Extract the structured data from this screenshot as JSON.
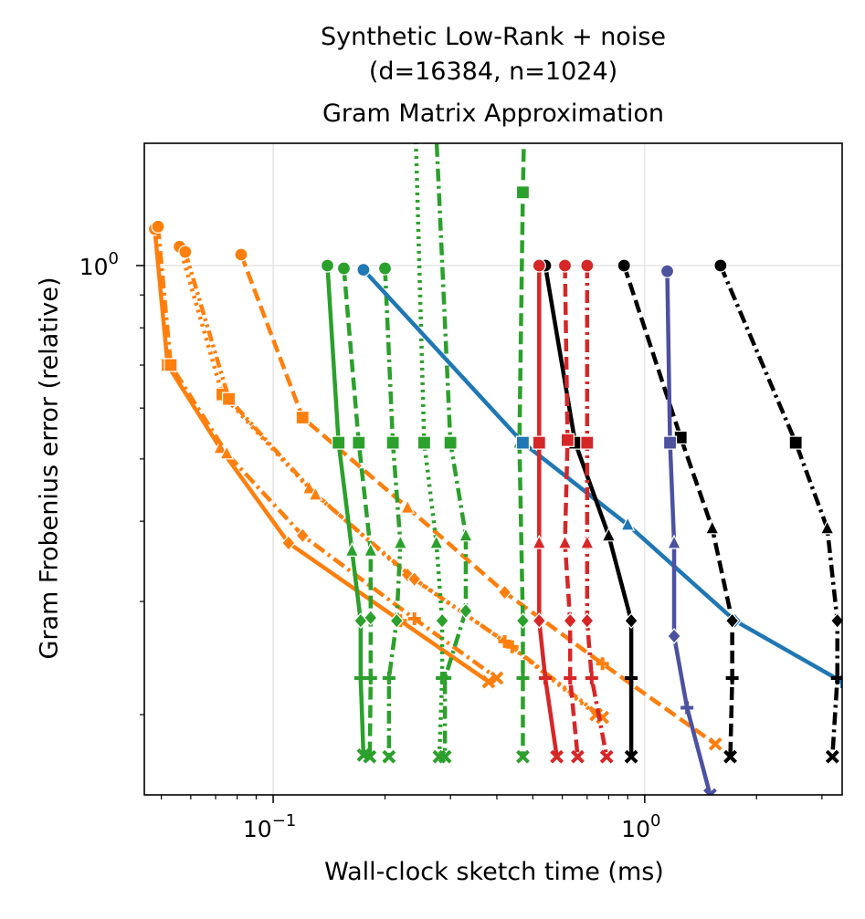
{
  "chart_data": {
    "type": "line",
    "title": [
      "Synthetic Low-Rank + noise",
      "(d=16384, n=1024)",
      "Gram Matrix Approximation"
    ],
    "xlabel": "Wall-clock sketch time (ms)",
    "ylabel": "Gram Frobenius error (relative)",
    "xscale": "log",
    "yscale": "log",
    "xlim": [
      0.045,
      3.4
    ],
    "ylim": [
      0.15,
      1.55
    ],
    "x_ticks": [
      {
        "value": 0.1,
        "label": "10",
        "exp": "−1"
      },
      {
        "value": 1,
        "label": "10",
        "exp": "0"
      }
    ],
    "y_ticks": [
      {
        "value": 1,
        "label": "10",
        "exp": "0"
      }
    ],
    "grid": true,
    "legend": "none",
    "marker_order": [
      "circle",
      "square",
      "triangle",
      "diamond",
      "plus",
      "x"
    ],
    "series": [
      {
        "color": "#ff7f0e",
        "dash": "solid",
        "x": [
          0.048,
          0.052,
          0.072,
          0.11,
          0.22,
          0.38
        ],
        "y": [
          1.14,
          0.7,
          0.52,
          0.37,
          0.28,
          0.225
        ]
      },
      {
        "color": "#ff7f0e",
        "dash": "dashdot",
        "x": [
          0.049,
          0.053,
          0.075,
          0.12,
          0.24,
          0.4
        ],
        "y": [
          1.15,
          0.7,
          0.51,
          0.38,
          0.282,
          0.228
        ]
      },
      {
        "color": "#ff7f0e",
        "dash": "dotted",
        "x": [
          0.056,
          0.073,
          0.125,
          0.23,
          0.42,
          0.74
        ],
        "y": [
          1.07,
          0.63,
          0.45,
          0.33,
          0.26,
          0.2
        ]
      },
      {
        "color": "#ff7f0e",
        "dash": "dashdotdot",
        "x": [
          0.058,
          0.076,
          0.13,
          0.24,
          0.44,
          0.77
        ],
        "y": [
          1.05,
          0.62,
          0.44,
          0.325,
          0.255,
          0.198
        ]
      },
      {
        "color": "#ff7f0e",
        "dash": "dashed",
        "x": [
          0.082,
          0.12,
          0.23,
          0.42,
          0.77,
          1.55
        ],
        "y": [
          1.04,
          0.58,
          0.42,
          0.31,
          0.24,
          0.18
        ]
      },
      {
        "color": "#2ca02c",
        "dash": "solid",
        "x": [
          0.14,
          0.15,
          0.163,
          0.172,
          0.172,
          0.175
        ],
        "y": [
          1.0,
          0.53,
          0.36,
          0.28,
          0.228,
          0.173
        ]
      },
      {
        "color": "#2ca02c",
        "dash": "dashed",
        "x": [
          0.155,
          0.17,
          0.183,
          0.183,
          0.183,
          0.182
        ],
        "y": [
          0.99,
          0.53,
          0.36,
          0.283,
          0.228,
          0.172
        ]
      },
      {
        "color": "#2ca02c",
        "dash": "dashdot",
        "x": [
          0.2,
          0.21,
          0.22,
          0.215,
          0.205,
          0.205
        ],
        "y": [
          0.99,
          0.53,
          0.37,
          0.28,
          0.228,
          0.172
        ]
      },
      {
        "color": "#2ca02c",
        "dash": "dotted",
        "x": [
          0.238,
          0.255,
          0.275,
          0.285,
          0.285,
          0.28
        ],
        "y": [
          2.25,
          0.53,
          0.37,
          0.28,
          0.228,
          0.172
        ]
      },
      {
        "color": "#2ca02c",
        "dash": "dashdot",
        "x": [
          0.268,
          0.3,
          0.33,
          0.33,
          0.29,
          0.29
        ],
        "y": [
          2.2,
          0.53,
          0.38,
          0.29,
          0.228,
          0.172
        ]
      },
      {
        "color": "#2ca02c",
        "dash": "dashed",
        "x": [
          0.48,
          0.47,
          0.46,
          0.47,
          0.47,
          0.47
        ],
        "y": [
          2.4,
          1.3,
          0.53,
          0.28,
          0.228,
          0.172
        ]
      },
      {
        "color": "#1f77b4",
        "dash": "solid",
        "x": [
          0.175,
          0.47,
          0.9,
          1.75,
          3.4
        ],
        "y": [
          0.985,
          0.53,
          0.395,
          0.28,
          0.225
        ]
      },
      {
        "color": "#000000",
        "dash": "solid",
        "x": [
          0.54,
          0.65,
          0.8,
          0.92,
          0.92,
          0.92
        ],
        "y": [
          1.0,
          0.53,
          0.38,
          0.28,
          0.228,
          0.172
        ]
      },
      {
        "color": "#000000",
        "dash": "dashed",
        "x": [
          0.88,
          1.25,
          1.52,
          1.72,
          1.72,
          1.7
        ],
        "y": [
          1.0,
          0.54,
          0.39,
          0.28,
          0.228,
          0.172
        ]
      },
      {
        "color": "#000000",
        "dash": "dashdot",
        "x": [
          1.6,
          2.55,
          3.1,
          3.3,
          3.3,
          3.2
        ],
        "y": [
          1.0,
          0.53,
          0.39,
          0.28,
          0.228,
          0.172
        ]
      },
      {
        "color": "#d62728",
        "dash": "solid",
        "x": [
          0.52,
          0.52,
          0.52,
          0.52,
          0.54,
          0.58
        ],
        "y": [
          1.0,
          0.53,
          0.37,
          0.28,
          0.228,
          0.172
        ]
      },
      {
        "color": "#d62728",
        "dash": "dashed",
        "x": [
          0.61,
          0.62,
          0.61,
          0.63,
          0.63,
          0.66
        ],
        "y": [
          1.0,
          0.535,
          0.37,
          0.28,
          0.228,
          0.172
        ]
      },
      {
        "color": "#d62728",
        "dash": "dashdot",
        "x": [
          0.7,
          0.7,
          0.7,
          0.7,
          0.72,
          0.79
        ],
        "y": [
          1.0,
          0.53,
          0.37,
          0.28,
          0.228,
          0.172
        ]
      },
      {
        "color": "#4c51a0",
        "dash": "solid",
        "x": [
          1.15,
          1.17,
          1.2,
          1.2,
          1.3,
          1.5
        ],
        "y": [
          0.98,
          0.53,
          0.37,
          0.265,
          0.205,
          0.15
        ]
      }
    ]
  }
}
